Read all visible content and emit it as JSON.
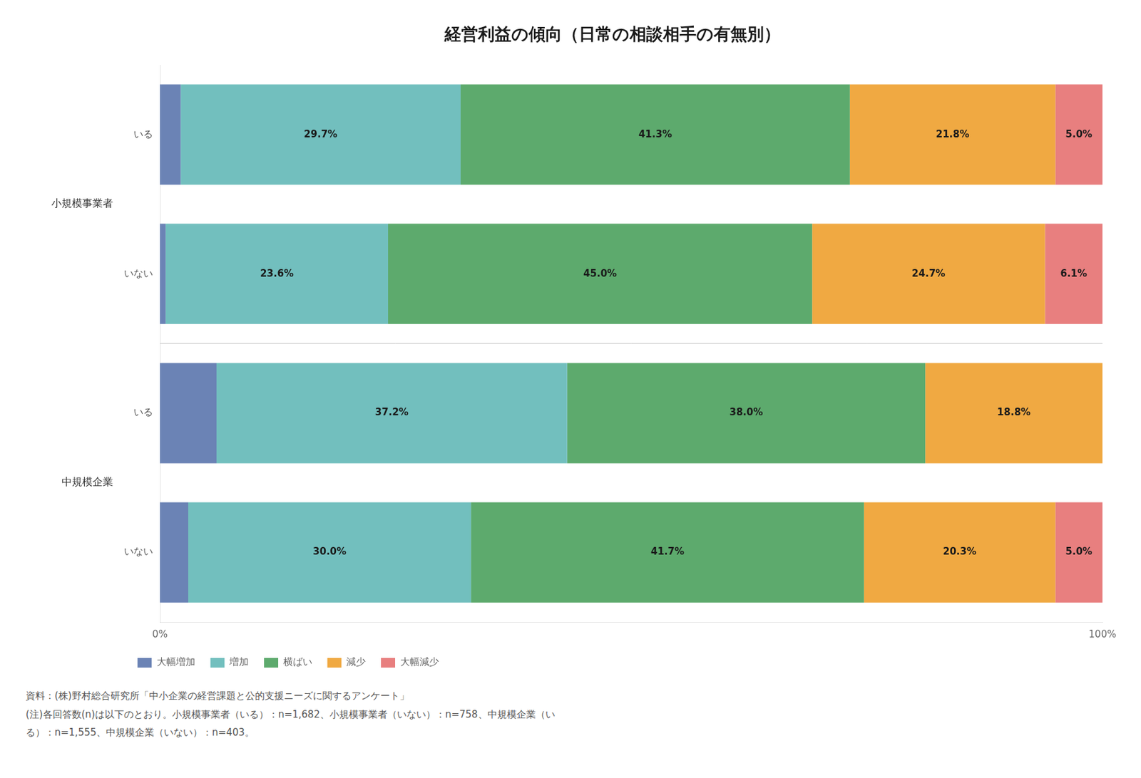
{
  "chart_data": {
    "type": "bar",
    "orientation": "horizontal",
    "stacked": true,
    "title": "経営利益の傾向（日常の相談相手の有無別）",
    "categories": [
      "いる",
      "いない",
      "いる",
      "いない"
    ],
    "category_groups": [
      "小規模事業者",
      "小規模事業者",
      "中規模企業",
      "中規模企業"
    ],
    "series": [
      {
        "name": "大幅増加",
        "color": "#6b83b5",
        "values": [
          2.2,
          0.6,
          6.0,
          3.0
        ],
        "data_labels": false
      },
      {
        "name": "増加",
        "color": "#72bfbe",
        "values": [
          29.7,
          23.6,
          37.2,
          30.0
        ],
        "value_labels": [
          "29.7%",
          "23.6%",
          "37.2%",
          "30.0%"
        ]
      },
      {
        "name": "横ばい",
        "color": "#5daa6d",
        "values": [
          41.3,
          45.0,
          38.0,
          41.7
        ],
        "value_labels": [
          "41.3%",
          "45.0%",
          "38.0%",
          "41.7%"
        ]
      },
      {
        "name": "減少",
        "color": "#f0a942",
        "values": [
          21.8,
          24.7,
          18.8,
          20.3
        ],
        "value_labels": [
          "21.8%",
          "24.7%",
          "18.8%",
          "20.3%"
        ]
      },
      {
        "name": "大幅減少",
        "color": "#e87f7f",
        "values": [
          5.0,
          6.1,
          0.0,
          5.0
        ],
        "value_labels": [
          "5.0%",
          "6.1%",
          null,
          "5.0%"
        ]
      }
    ],
    "xlim": [
      0,
      100
    ],
    "xticks": [
      {
        "value": 0,
        "label": "0%"
      },
      {
        "value": 100,
        "label": "100%"
      }
    ],
    "grid": false,
    "legend": "bottom",
    "data_labels": true,
    "footnotes": [
      "資料：(株)野村総合研究所「中小企業の経営課題と公的支援ニーズに関するアンケート」",
      "(注)各回答数(n)は以下のとおり。小規模事業者（いる）：n=1,682、小規模事業者（いない）：n=758、中規模企業（い",
      "る）：n=1,555、中規模企業（いない）：n=403。"
    ]
  }
}
